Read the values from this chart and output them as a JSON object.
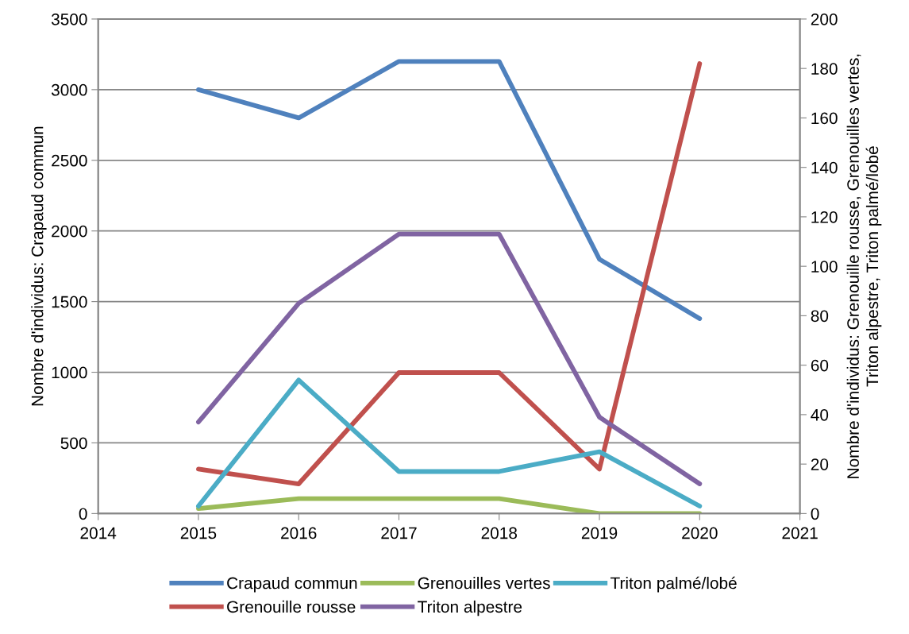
{
  "chart_data": {
    "type": "line",
    "x": [
      2015,
      2016,
      2017,
      2018,
      2019,
      2020
    ],
    "xlim": [
      2014,
      2021
    ],
    "xticks": [
      2014,
      2015,
      2016,
      2017,
      2018,
      2019,
      2020,
      2021
    ],
    "ylim": [
      0,
      3500
    ],
    "yticks": [
      0,
      500,
      1000,
      1500,
      2000,
      2500,
      3000,
      3500
    ],
    "y2lim": [
      0,
      200
    ],
    "y2ticks": [
      0,
      20,
      40,
      60,
      80,
      100,
      120,
      140,
      160,
      180,
      200
    ],
    "ylabel": "Nombre d'individus: Crapaud commun",
    "y2label": "Nombre d'individus: Grenouille rousse, Grenouilles vertes,\nTriton alpestre, Triton palmé/lobé",
    "grid": "y",
    "legend": "bottom",
    "marker": "none",
    "line_style": "solid",
    "series": [
      {
        "name": "Crapaud commun",
        "color": "#4f81bd",
        "values": [
          3000,
          2800,
          3200,
          3200,
          1800,
          1380
        ]
      },
      {
        "name": "Grenouille rousse",
        "color": "#c0504d",
        "axis": "y2",
        "values": [
          18,
          12,
          57,
          57,
          18,
          182
        ]
      },
      {
        "name": "Grenouilles vertes",
        "color": "#9bbb59",
        "axis": "y2",
        "values": [
          2,
          6,
          6,
          6,
          0,
          0
        ]
      },
      {
        "name": "Triton alpestre",
        "color": "#8064a2",
        "axis": "y2",
        "values": [
          37,
          85,
          113,
          113,
          39,
          12
        ]
      },
      {
        "name": "Triton palmé/lobé",
        "color": "#4bacc6",
        "axis": "y2",
        "values": [
          3,
          54,
          17,
          17,
          25,
          3
        ]
      }
    ]
  }
}
